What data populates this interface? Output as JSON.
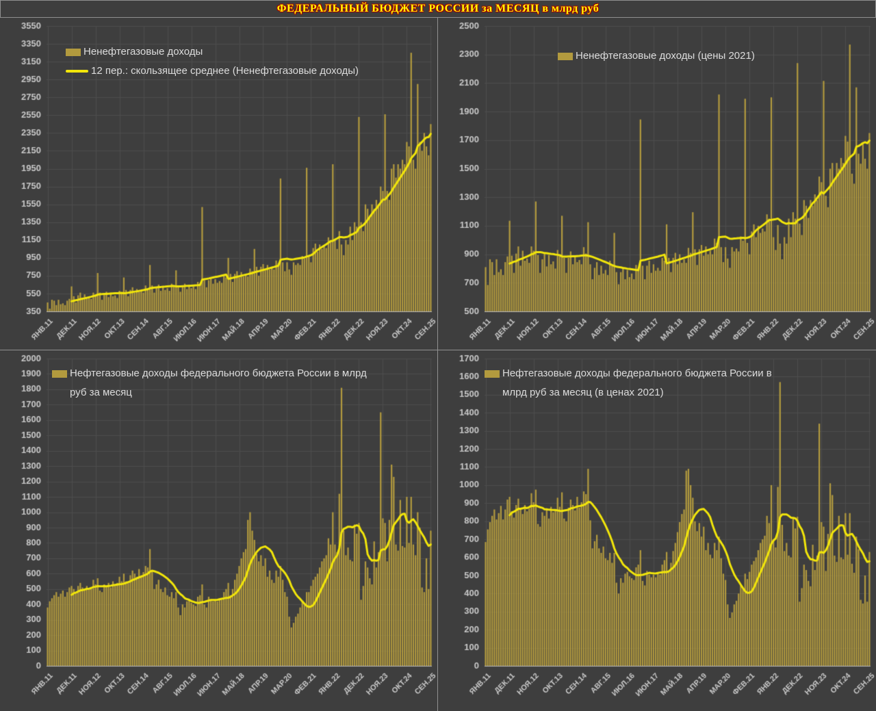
{
  "title": "ФЕДЕРАЛЬНЫЙ БЮДЖЕТ РОССИИ за МЕСЯЦ в млрд руб",
  "colors": {
    "background": "#3e3e3e",
    "grid": "#4d4d4d",
    "axis_line": "#bdbdbd",
    "bar": "#b29a3e",
    "ma_line": "#f2e60a",
    "tick_label": "#c9c9c9",
    "legend_text": "#dcdcdc",
    "title_fill": "#ffff00",
    "title_outline": "#a50000",
    "divider": "#909090"
  },
  "x_axis": {
    "tick_labels": [
      "ЯНВ.11",
      "ДЕК.11",
      "НОЯ.12",
      "ОКТ.13",
      "СЕН.14",
      "АВГ.15",
      "ИЮЛ.16",
      "ИЮН.17",
      "МАЙ.18",
      "АПР.19",
      "МАР.20",
      "ФЕВ.21",
      "ЯНВ.22",
      "ДЕК.22",
      "НОЯ.23",
      "ОКТ.24",
      "СЕН.25"
    ],
    "tick_every": 11,
    "n_points": 177
  },
  "chart_data": [
    {
      "id": "non-oil-gas-nominal",
      "type": "bar",
      "legend_bar": "Ненефтегазовые доходы",
      "legend_ma": "12 пер.: скользящее среднее (Ненефтегазовые доходы)",
      "ylim": [
        350,
        3550
      ],
      "ystep": 200,
      "ma_window": 12,
      "values": [
        450,
        380,
        480,
        470,
        420,
        480,
        430,
        440,
        420,
        470,
        490,
        630,
        520,
        450,
        530,
        560,
        480,
        540,
        500,
        510,
        490,
        560,
        540,
        780,
        560,
        480,
        540,
        570,
        510,
        560,
        520,
        530,
        500,
        580,
        560,
        730,
        590,
        520,
        590,
        620,
        560,
        600,
        570,
        580,
        560,
        640,
        610,
        870,
        640,
        560,
        620,
        650,
        580,
        630,
        590,
        610,
        580,
        660,
        630,
        810,
        640,
        570,
        640,
        660,
        600,
        650,
        610,
        630,
        600,
        680,
        660,
        1520,
        700,
        620,
        700,
        730,
        660,
        710,
        670,
        690,
        670,
        750,
        730,
        950,
        770,
        680,
        770,
        800,
        730,
        790,
        740,
        760,
        740,
        830,
        800,
        1050,
        850,
        750,
        850,
        880,
        810,
        870,
        820,
        840,
        820,
        920,
        890,
        1840,
        900,
        800,
        900,
        820,
        760,
        900,
        870,
        890,
        870,
        970,
        940,
        1960,
        980,
        900,
        1060,
        1110,
        1020,
        1100,
        1050,
        1080,
        1060,
        1180,
        1150,
        2000,
        1150,
        1050,
        1250,
        1100,
        980,
        1150,
        1100,
        1300,
        1150,
        1350,
        1300,
        2530,
        1350,
        1250,
        1550,
        1500,
        1400,
        1550,
        1500,
        1600,
        1550,
        1750,
        1700,
        2560,
        1700,
        1600,
        1950,
        2000,
        1850,
        2000,
        1950,
        2050,
        2000,
        2250,
        2200,
        3250,
        2050,
        1950,
        2900,
        2250,
        2150,
        2350,
        2200,
        2100,
        2450
      ]
    },
    {
      "id": "non-oil-gas-2021-prices",
      "type": "bar",
      "legend_bar": "Ненефтегазовые доходы (цены 2021)",
      "ylim": [
        500,
        2500
      ],
      "ystep": 200,
      "ma_window": 12,
      "values": [
        810,
        685,
        865,
        845,
        755,
        865,
        775,
        795,
        755,
        845,
        885,
        1135,
        890,
        770,
        905,
        955,
        820,
        925,
        855,
        870,
        840,
        955,
        925,
        1270,
        895,
        770,
        865,
        910,
        815,
        895,
        830,
        850,
        800,
        930,
        895,
        1170,
        875,
        770,
        875,
        920,
        830,
        890,
        845,
        860,
        830,
        950,
        905,
        1125,
        830,
        725,
        805,
        845,
        755,
        820,
        765,
        790,
        755,
        855,
        820,
        1050,
        775,
        690,
        775,
        800,
        725,
        790,
        740,
        765,
        725,
        825,
        800,
        1845,
        820,
        725,
        820,
        855,
        770,
        830,
        785,
        805,
        785,
        875,
        855,
        1110,
        875,
        775,
        875,
        910,
        830,
        900,
        840,
        865,
        840,
        945,
        910,
        1195,
        935,
        825,
        935,
        965,
        890,
        955,
        900,
        925,
        900,
        1010,
        980,
        2020,
        950,
        845,
        950,
        870,
        805,
        950,
        920,
        940,
        920,
        1025,
        995,
        1990,
        980,
        900,
        1060,
        1110,
        1020,
        1100,
        1050,
        1080,
        1060,
        1180,
        1150,
        2000,
        1020,
        930,
        1105,
        975,
        865,
        1020,
        975,
        1150,
        1020,
        1195,
        1150,
        2240,
        1115,
        1035,
        1280,
        1240,
        1155,
        1280,
        1240,
        1320,
        1280,
        1445,
        1405,
        2115,
        1310,
        1230,
        1500,
        1540,
        1425,
        1540,
        1500,
        1575,
        1540,
        1730,
        1690,
        2370,
        1465,
        1395,
        2070,
        1605,
        1535,
        1680,
        1570,
        1500,
        1750
      ]
    },
    {
      "id": "oil-gas-nominal",
      "type": "bar",
      "legend_bar": "Нефтегазовые доходы федерального бюджета России в млрд руб за месяц",
      "ylim": [
        0,
        2000
      ],
      "ystep": 100,
      "ma_window": 12,
      "values": [
        380,
        420,
        440,
        460,
        480,
        450,
        470,
        490,
        450,
        480,
        510,
        520,
        500,
        480,
        520,
        540,
        510,
        490,
        520,
        500,
        510,
        560,
        530,
        570,
        490,
        480,
        530,
        520,
        540,
        510,
        550,
        530,
        540,
        580,
        550,
        600,
        550,
        540,
        590,
        620,
        600,
        580,
        630,
        590,
        610,
        650,
        640,
        760,
        620,
        500,
        530,
        560,
        500,
        480,
        510,
        460,
        450,
        480,
        440,
        480,
        380,
        330,
        400,
        380,
        420,
        430,
        410,
        400,
        390,
        450,
        460,
        530,
        400,
        380,
        450,
        430,
        420,
        430,
        420,
        440,
        430,
        480,
        500,
        540,
        460,
        500,
        560,
        600,
        650,
        700,
        740,
        760,
        950,
        1000,
        880,
        820,
        730,
        680,
        720,
        650,
        700,
        580,
        620,
        560,
        540,
        620,
        580,
        650,
        560,
        480,
        450,
        320,
        250,
        280,
        320,
        340,
        380,
        420,
        400,
        480,
        480,
        520,
        560,
        580,
        600,
        640,
        680,
        700,
        720,
        830,
        790,
        1000,
        790,
        740,
        1120,
        1810,
        880,
        720,
        770,
        690,
        680,
        920,
        860,
        930,
        430,
        520,
        680,
        640,
        570,
        530,
        810,
        640,
        740,
        1650,
        960,
        930,
        680,
        950,
        1310,
        1230,
        790,
        750,
        1080,
        780,
        770,
        1100,
        800,
        1100,
        790,
        720,
        1000,
        900,
        510,
        480,
        700,
        500,
        880
      ]
    },
    {
      "id": "oil-gas-2021-prices",
      "type": "bar",
      "legend_bar": "Нефтегазовые доходы федерального бюджета России в млрд руб за месяц (в ценах 2021)",
      "ylim": [
        0,
        1700
      ],
      "ystep": 100,
      "ma_window": 12,
      "values": [
        685,
        755,
        795,
        830,
        865,
        810,
        845,
        885,
        810,
        865,
        920,
        935,
        855,
        820,
        890,
        925,
        870,
        840,
        890,
        855,
        870,
        955,
        905,
        975,
        785,
        770,
        850,
        830,
        865,
        815,
        880,
        850,
        865,
        930,
        880,
        960,
        815,
        800,
        875,
        920,
        890,
        860,
        935,
        875,
        905,
        965,
        950,
        1090,
        805,
        650,
        690,
        725,
        650,
        625,
        660,
        595,
        585,
        625,
        570,
        625,
        460,
        400,
        485,
        460,
        510,
        520,
        495,
        485,
        475,
        545,
        560,
        640,
        470,
        445,
        525,
        505,
        490,
        505,
        490,
        515,
        505,
        560,
        585,
        630,
        525,
        570,
        635,
        680,
        740,
        795,
        840,
        865,
        1080,
        1090,
        1000,
        930,
        800,
        745,
        790,
        715,
        770,
        640,
        680,
        615,
        595,
        680,
        640,
        715,
        595,
        510,
        475,
        340,
        265,
        295,
        340,
        360,
        400,
        445,
        425,
        510,
        480,
        520,
        560,
        580,
        600,
        640,
        680,
        700,
        720,
        830,
        790,
        1000,
        700,
        655,
        990,
        1570,
        780,
        635,
        680,
        610,
        600,
        815,
        760,
        825,
        355,
        430,
        560,
        530,
        470,
        440,
        670,
        530,
        610,
        1340,
        795,
        770,
        525,
        730,
        1010,
        945,
        610,
        575,
        830,
        600,
        590,
        845,
        615,
        845,
        565,
        515,
        715,
        645,
        365,
        345,
        500,
        355,
        630
      ]
    }
  ]
}
